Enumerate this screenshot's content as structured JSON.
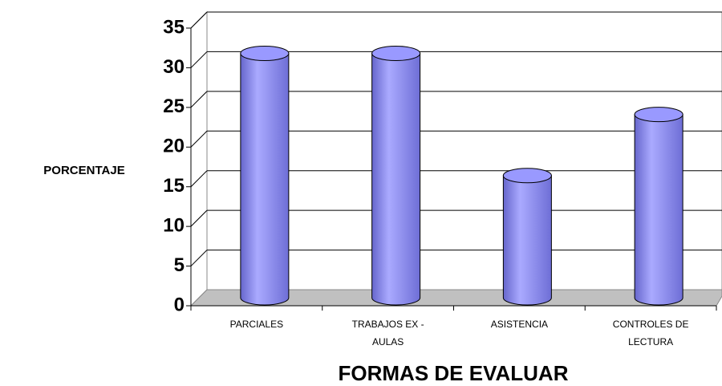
{
  "chart_data": {
    "type": "bar",
    "x_label": "FORMAS DE EVALUAR",
    "y_label": "PORCENTAJE",
    "categories": [
      "PARCIALES",
      "TRABAJOS EX - AULAS",
      "ASISTENCIA",
      "CONTROLES DE LECTURA"
    ],
    "values": [
      30.8,
      30.8,
      15.4,
      23.1
    ],
    "color": "#9999ff",
    "ylim": [
      0,
      35
    ],
    "yticks": [
      0,
      5,
      10,
      15,
      20,
      25,
      30,
      35
    ],
    "grid": true
  }
}
